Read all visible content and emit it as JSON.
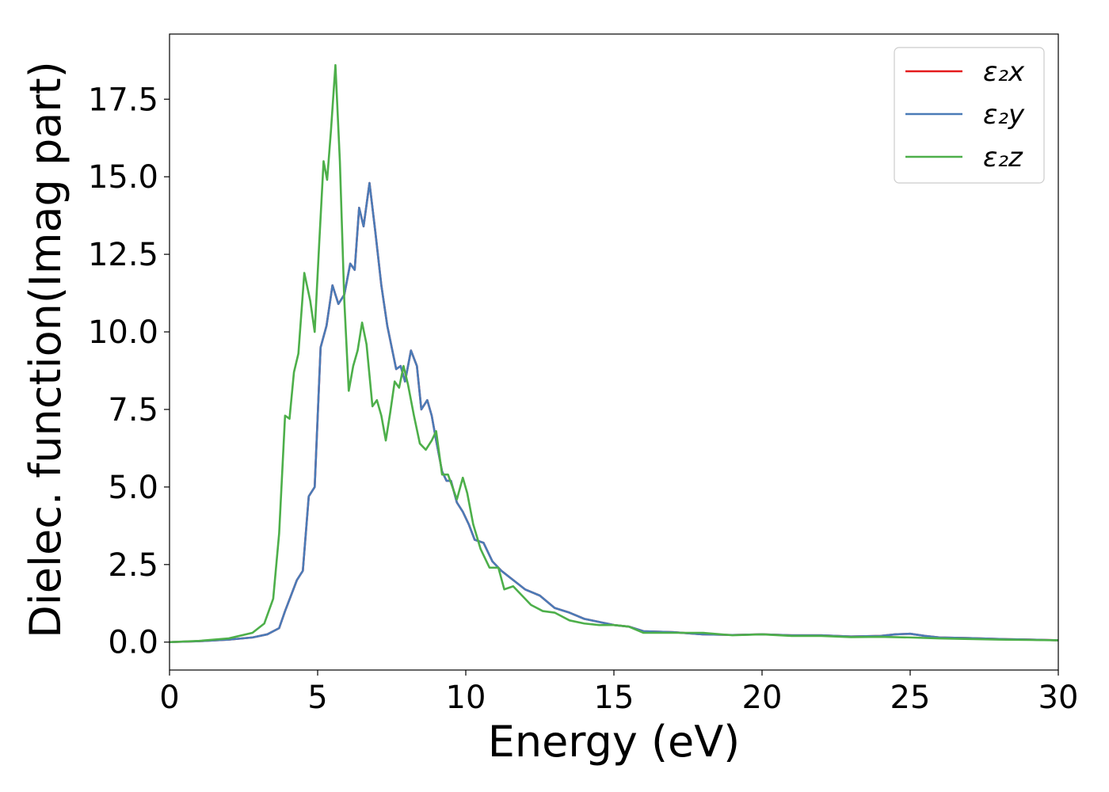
{
  "chart_data": {
    "type": "line",
    "title": "",
    "xlabel": "Energy (eV)",
    "ylabel": "Dielec. function(Imag part)",
    "xlim": [
      0,
      30
    ],
    "ylim": [
      -0.9,
      19.6
    ],
    "xticks": [
      0,
      5,
      10,
      15,
      20,
      25,
      30
    ],
    "xtick_labels": [
      "0",
      "5",
      "10",
      "15",
      "20",
      "25",
      "30"
    ],
    "yticks": [
      0.0,
      2.5,
      5.0,
      7.5,
      10.0,
      12.5,
      15.0,
      17.5
    ],
    "ytick_labels": [
      "0.0",
      "2.5",
      "5.0",
      "7.5",
      "10.0",
      "12.5",
      "15.0",
      "17.5"
    ],
    "grid": false,
    "legend_position": "top-right",
    "series": [
      {
        "name": "ε₂x",
        "color": "#e41a1c",
        "points": [
          [
            0,
            0
          ],
          [
            1,
            0.03
          ],
          [
            2,
            0.08
          ],
          [
            2.8,
            0.15
          ],
          [
            3.3,
            0.25
          ],
          [
            3.7,
            0.45
          ],
          [
            3.9,
            1.0
          ],
          [
            4.1,
            1.5
          ],
          [
            4.3,
            2.0
          ],
          [
            4.5,
            2.3
          ],
          [
            4.7,
            4.7
          ],
          [
            4.9,
            5.0
          ],
          [
            5.1,
            9.5
          ],
          [
            5.3,
            10.2
          ],
          [
            5.5,
            11.5
          ],
          [
            5.7,
            10.9
          ],
          [
            5.9,
            11.2
          ],
          [
            6.1,
            12.2
          ],
          [
            6.25,
            12.0
          ],
          [
            6.4,
            14.0
          ],
          [
            6.55,
            13.4
          ],
          [
            6.75,
            14.8
          ],
          [
            6.95,
            13.2
          ],
          [
            7.15,
            11.5
          ],
          [
            7.35,
            10.2
          ],
          [
            7.5,
            9.5
          ],
          [
            7.65,
            8.8
          ],
          [
            7.8,
            8.9
          ],
          [
            7.95,
            8.4
          ],
          [
            8.15,
            9.4
          ],
          [
            8.35,
            8.9
          ],
          [
            8.5,
            7.5
          ],
          [
            8.7,
            7.8
          ],
          [
            8.85,
            7.3
          ],
          [
            9.0,
            6.5
          ],
          [
            9.2,
            5.5
          ],
          [
            9.35,
            5.2
          ],
          [
            9.5,
            5.2
          ],
          [
            9.7,
            4.5
          ],
          [
            9.9,
            4.2
          ],
          [
            10.1,
            3.8
          ],
          [
            10.3,
            3.3
          ],
          [
            10.6,
            3.2
          ],
          [
            10.9,
            2.6
          ],
          [
            11.2,
            2.3
          ],
          [
            11.6,
            2.0
          ],
          [
            12.0,
            1.7
          ],
          [
            12.5,
            1.5
          ],
          [
            13.0,
            1.1
          ],
          [
            13.5,
            0.95
          ],
          [
            14.0,
            0.75
          ],
          [
            14.5,
            0.65
          ],
          [
            15.0,
            0.55
          ],
          [
            15.5,
            0.5
          ],
          [
            16.0,
            0.35
          ],
          [
            17.0,
            0.32
          ],
          [
            18.0,
            0.25
          ],
          [
            19.0,
            0.23
          ],
          [
            20.0,
            0.25
          ],
          [
            21.0,
            0.22
          ],
          [
            22.0,
            0.22
          ],
          [
            23.0,
            0.18
          ],
          [
            24.0,
            0.2
          ],
          [
            24.5,
            0.25
          ],
          [
            25.0,
            0.27
          ],
          [
            25.5,
            0.2
          ],
          [
            26.0,
            0.15
          ],
          [
            27.0,
            0.13
          ],
          [
            28.0,
            0.1
          ],
          [
            29.0,
            0.08
          ],
          [
            30.0,
            0.06
          ]
        ]
      },
      {
        "name": "ε₂y",
        "color": "#4a7bb7",
        "points": [
          [
            0,
            0
          ],
          [
            1,
            0.03
          ],
          [
            2,
            0.08
          ],
          [
            2.8,
            0.15
          ],
          [
            3.3,
            0.25
          ],
          [
            3.7,
            0.45
          ],
          [
            3.9,
            1.0
          ],
          [
            4.1,
            1.5
          ],
          [
            4.3,
            2.0
          ],
          [
            4.5,
            2.3
          ],
          [
            4.7,
            4.7
          ],
          [
            4.9,
            5.0
          ],
          [
            5.1,
            9.5
          ],
          [
            5.3,
            10.2
          ],
          [
            5.5,
            11.5
          ],
          [
            5.7,
            10.9
          ],
          [
            5.9,
            11.2
          ],
          [
            6.1,
            12.2
          ],
          [
            6.25,
            12.0
          ],
          [
            6.4,
            14.0
          ],
          [
            6.55,
            13.4
          ],
          [
            6.75,
            14.8
          ],
          [
            6.95,
            13.2
          ],
          [
            7.15,
            11.5
          ],
          [
            7.35,
            10.2
          ],
          [
            7.5,
            9.5
          ],
          [
            7.65,
            8.8
          ],
          [
            7.8,
            8.9
          ],
          [
            7.95,
            8.4
          ],
          [
            8.15,
            9.4
          ],
          [
            8.35,
            8.9
          ],
          [
            8.5,
            7.5
          ],
          [
            8.7,
            7.8
          ],
          [
            8.85,
            7.3
          ],
          [
            9.0,
            6.5
          ],
          [
            9.2,
            5.5
          ],
          [
            9.35,
            5.2
          ],
          [
            9.5,
            5.2
          ],
          [
            9.7,
            4.5
          ],
          [
            9.9,
            4.2
          ],
          [
            10.1,
            3.8
          ],
          [
            10.3,
            3.3
          ],
          [
            10.6,
            3.2
          ],
          [
            10.9,
            2.6
          ],
          [
            11.2,
            2.3
          ],
          [
            11.6,
            2.0
          ],
          [
            12.0,
            1.7
          ],
          [
            12.5,
            1.5
          ],
          [
            13.0,
            1.1
          ],
          [
            13.5,
            0.95
          ],
          [
            14.0,
            0.75
          ],
          [
            14.5,
            0.65
          ],
          [
            15.0,
            0.55
          ],
          [
            15.5,
            0.5
          ],
          [
            16.0,
            0.35
          ],
          [
            17.0,
            0.32
          ],
          [
            18.0,
            0.25
          ],
          [
            19.0,
            0.23
          ],
          [
            20.0,
            0.25
          ],
          [
            21.0,
            0.22
          ],
          [
            22.0,
            0.22
          ],
          [
            23.0,
            0.18
          ],
          [
            24.0,
            0.2
          ],
          [
            24.5,
            0.25
          ],
          [
            25.0,
            0.27
          ],
          [
            25.5,
            0.2
          ],
          [
            26.0,
            0.15
          ],
          [
            27.0,
            0.13
          ],
          [
            28.0,
            0.1
          ],
          [
            29.0,
            0.08
          ],
          [
            30.0,
            0.06
          ]
        ]
      },
      {
        "name": "ε₂z",
        "color": "#4daf4a",
        "points": [
          [
            0,
            0
          ],
          [
            1,
            0.04
          ],
          [
            2,
            0.12
          ],
          [
            2.8,
            0.3
          ],
          [
            3.2,
            0.6
          ],
          [
            3.5,
            1.4
          ],
          [
            3.7,
            3.5
          ],
          [
            3.9,
            7.3
          ],
          [
            4.05,
            7.2
          ],
          [
            4.2,
            8.7
          ],
          [
            4.35,
            9.3
          ],
          [
            4.55,
            11.9
          ],
          [
            4.75,
            11.0
          ],
          [
            4.9,
            10.0
          ],
          [
            5.05,
            12.8
          ],
          [
            5.2,
            15.5
          ],
          [
            5.32,
            14.9
          ],
          [
            5.45,
            16.5
          ],
          [
            5.6,
            18.6
          ],
          [
            5.75,
            15.5
          ],
          [
            5.9,
            11.0
          ],
          [
            6.05,
            8.1
          ],
          [
            6.2,
            8.9
          ],
          [
            6.35,
            9.4
          ],
          [
            6.5,
            10.3
          ],
          [
            6.65,
            9.6
          ],
          [
            6.85,
            7.6
          ],
          [
            7.0,
            7.8
          ],
          [
            7.15,
            7.3
          ],
          [
            7.3,
            6.5
          ],
          [
            7.45,
            7.4
          ],
          [
            7.6,
            8.4
          ],
          [
            7.75,
            8.2
          ],
          [
            7.9,
            8.9
          ],
          [
            8.05,
            8.3
          ],
          [
            8.25,
            7.3
          ],
          [
            8.45,
            6.4
          ],
          [
            8.65,
            6.2
          ],
          [
            8.85,
            6.5
          ],
          [
            9.0,
            6.8
          ],
          [
            9.2,
            5.4
          ],
          [
            9.4,
            5.4
          ],
          [
            9.55,
            5.0
          ],
          [
            9.7,
            4.6
          ],
          [
            9.9,
            5.3
          ],
          [
            10.05,
            4.8
          ],
          [
            10.25,
            3.8
          ],
          [
            10.5,
            3.0
          ],
          [
            10.8,
            2.4
          ],
          [
            11.1,
            2.4
          ],
          [
            11.3,
            1.7
          ],
          [
            11.6,
            1.8
          ],
          [
            11.9,
            1.5
          ],
          [
            12.2,
            1.2
          ],
          [
            12.6,
            1.0
          ],
          [
            13.0,
            0.95
          ],
          [
            13.5,
            0.7
          ],
          [
            14.0,
            0.6
          ],
          [
            14.5,
            0.55
          ],
          [
            15.0,
            0.55
          ],
          [
            15.5,
            0.5
          ],
          [
            16.0,
            0.3
          ],
          [
            17.0,
            0.3
          ],
          [
            18.0,
            0.3
          ],
          [
            19.0,
            0.22
          ],
          [
            20.0,
            0.25
          ],
          [
            21.0,
            0.2
          ],
          [
            22.0,
            0.2
          ],
          [
            23.0,
            0.16
          ],
          [
            24.0,
            0.17
          ],
          [
            25.0,
            0.15
          ],
          [
            26.0,
            0.12
          ],
          [
            27.0,
            0.1
          ],
          [
            28.0,
            0.08
          ],
          [
            29.0,
            0.07
          ],
          [
            30.0,
            0.06
          ]
        ]
      }
    ]
  }
}
